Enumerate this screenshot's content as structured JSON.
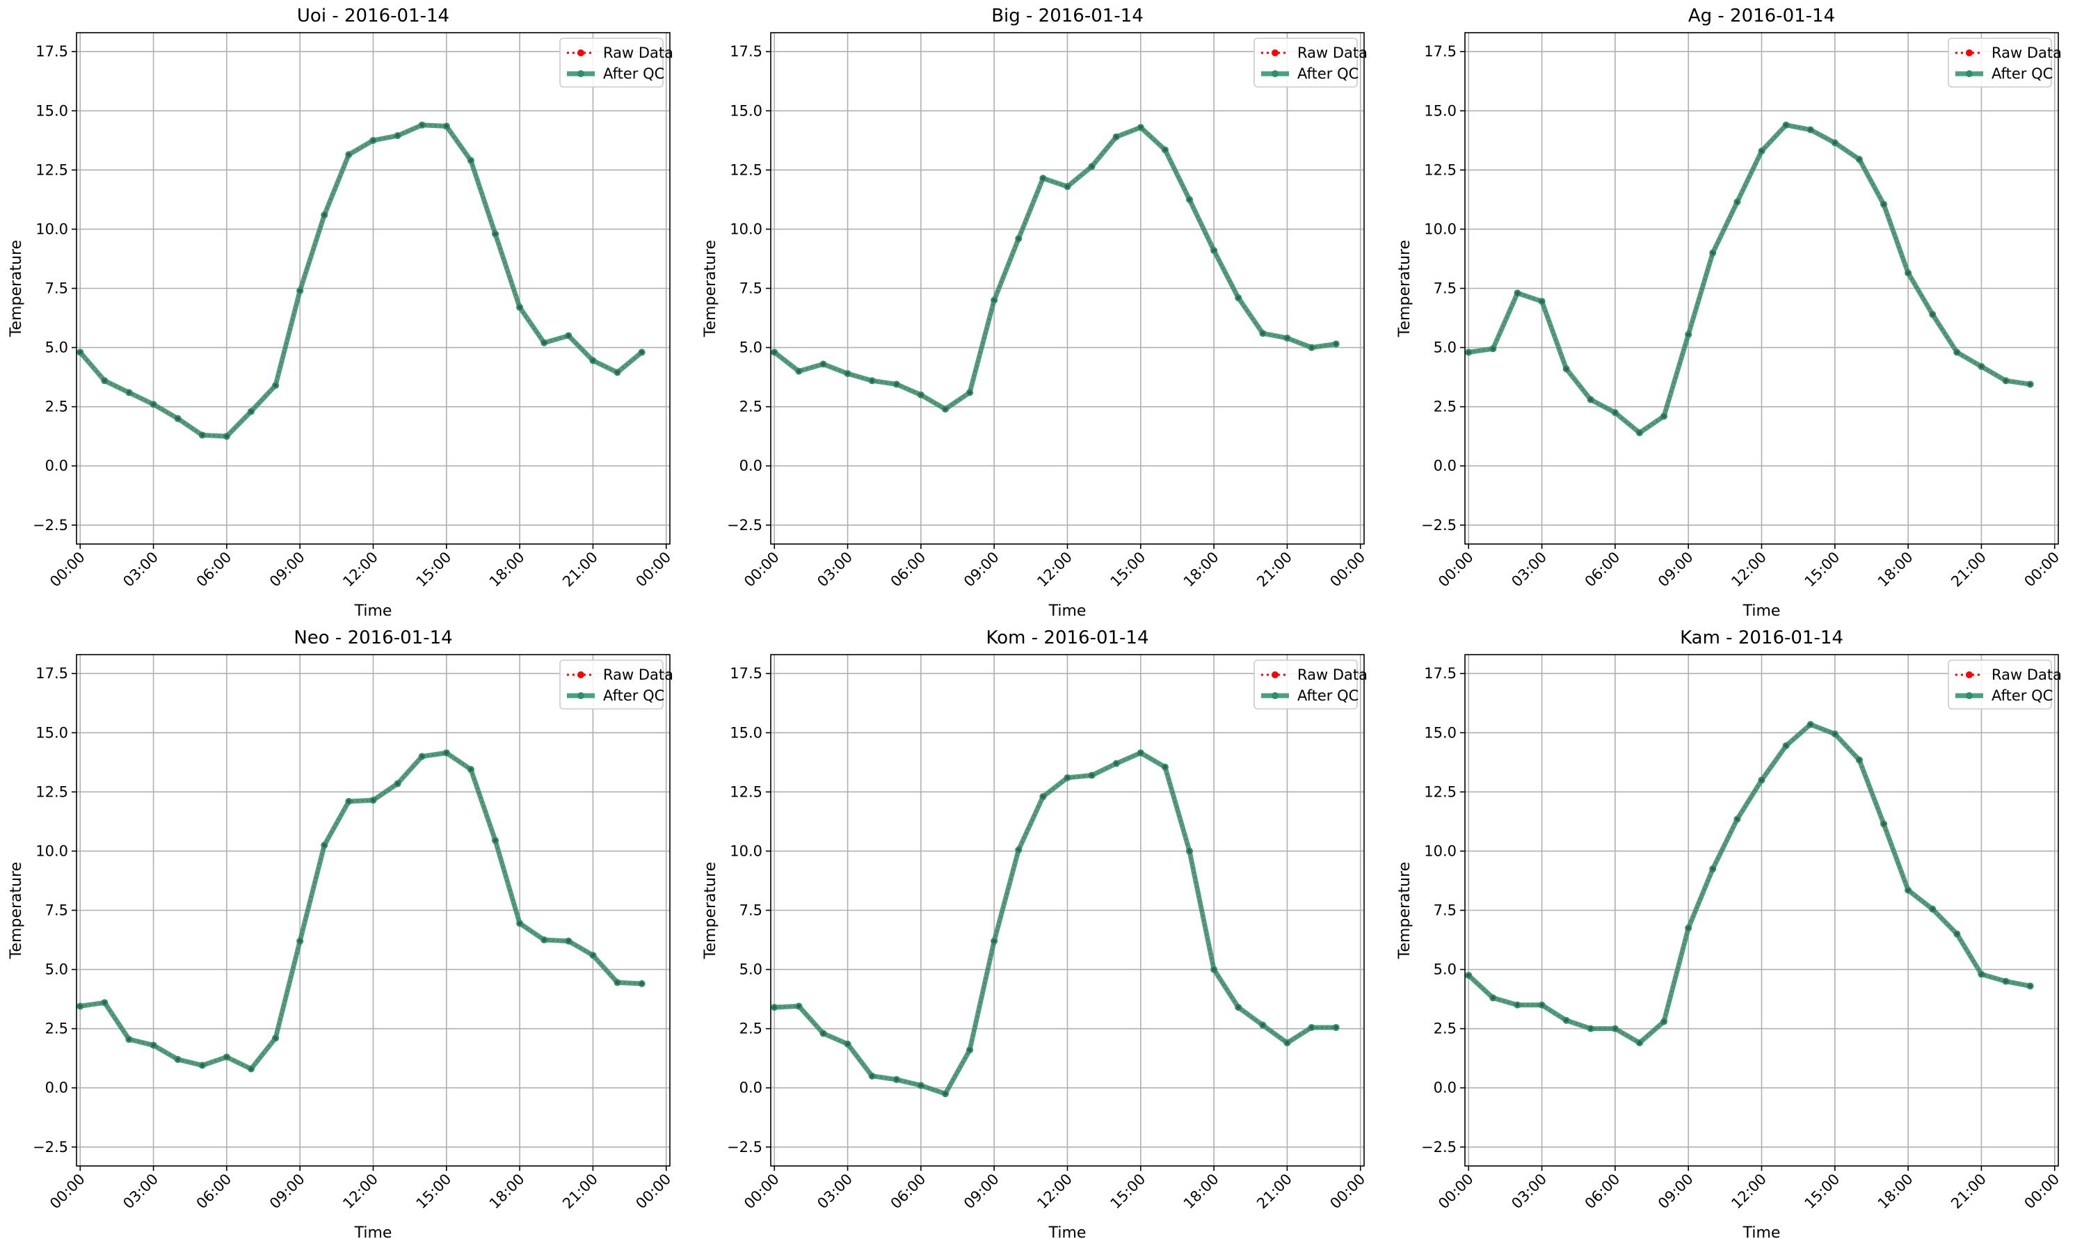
{
  "figure": {
    "background": "#ffffff"
  },
  "style": {
    "raw_color": "#ff0000",
    "qc_color": "#2a8f6a",
    "grid_color": "#b0b0b0",
    "axis_color": "#000000"
  },
  "chart_data": [
    {
      "type": "line",
      "title": "Uoi - 2016-01-14",
      "xlabel": "Time",
      "ylabel": "Temperature",
      "ylim": [
        -3.3,
        18.3
      ],
      "yticks": [
        -2.5,
        0.0,
        2.5,
        5.0,
        7.5,
        10.0,
        12.5,
        15.0,
        17.5
      ],
      "ytick_labels": [
        "−2.5",
        "0.0",
        "2.5",
        "5.0",
        "7.5",
        "10.0",
        "12.5",
        "15.0",
        "17.5"
      ],
      "xlim": [
        -0.15,
        24.15
      ],
      "xticks": [
        0,
        3,
        6,
        9,
        12,
        15,
        18,
        21,
        24
      ],
      "xtick_labels": [
        "00:00",
        "03:00",
        "06:00",
        "09:00",
        "12:00",
        "15:00",
        "18:00",
        "21:00",
        "00:00"
      ],
      "grid": true,
      "legend_position": "top-right",
      "x": [
        0,
        1,
        2,
        3,
        4,
        5,
        6,
        7,
        8,
        9,
        10,
        11,
        12,
        13,
        14,
        15,
        16,
        17,
        18,
        19,
        20,
        21,
        22,
        23
      ],
      "series": [
        {
          "name": "Raw Data",
          "values": [
            4.8,
            3.6,
            3.1,
            2.6,
            2.0,
            1.3,
            1.25,
            2.3,
            3.4,
            7.4,
            10.6,
            13.15,
            13.75,
            13.95,
            14.4,
            14.35,
            12.9,
            9.8,
            6.7,
            5.2,
            5.5,
            4.45,
            3.95,
            4.8
          ]
        },
        {
          "name": "After QC",
          "values": [
            4.8,
            3.6,
            3.1,
            2.6,
            2.0,
            1.3,
            1.25,
            2.3,
            3.4,
            7.4,
            10.6,
            13.15,
            13.75,
            13.95,
            14.4,
            14.35,
            12.9,
            9.8,
            6.7,
            5.2,
            5.5,
            4.45,
            3.95,
            4.8
          ]
        }
      ]
    },
    {
      "type": "line",
      "title": "Big - 2016-01-14",
      "xlabel": "Time",
      "ylabel": "Temperature",
      "ylim": [
        -3.3,
        18.3
      ],
      "yticks": [
        -2.5,
        0.0,
        2.5,
        5.0,
        7.5,
        10.0,
        12.5,
        15.0,
        17.5
      ],
      "ytick_labels": [
        "−2.5",
        "0.0",
        "2.5",
        "5.0",
        "7.5",
        "10.0",
        "12.5",
        "15.0",
        "17.5"
      ],
      "xlim": [
        -0.15,
        24.15
      ],
      "xticks": [
        0,
        3,
        6,
        9,
        12,
        15,
        18,
        21,
        24
      ],
      "xtick_labels": [
        "00:00",
        "03:00",
        "06:00",
        "09:00",
        "12:00",
        "15:00",
        "18:00",
        "21:00",
        "00:00"
      ],
      "grid": true,
      "legend_position": "top-right",
      "x": [
        0,
        1,
        2,
        3,
        4,
        5,
        6,
        7,
        8,
        9,
        10,
        11,
        12,
        13,
        14,
        15,
        16,
        17,
        18,
        19,
        20,
        21,
        22,
        23
      ],
      "series": [
        {
          "name": "Raw Data",
          "values": [
            4.8,
            4.0,
            4.3,
            3.9,
            3.6,
            3.45,
            3.0,
            2.4,
            3.1,
            7.0,
            9.6,
            12.15,
            11.8,
            12.65,
            13.9,
            14.3,
            13.35,
            11.25,
            9.1,
            7.1,
            5.6,
            5.4,
            5.0,
            5.15
          ]
        },
        {
          "name": "After QC",
          "values": [
            4.8,
            4.0,
            4.3,
            3.9,
            3.6,
            3.45,
            3.0,
            2.4,
            3.1,
            7.0,
            9.6,
            12.15,
            11.8,
            12.65,
            13.9,
            14.3,
            13.35,
            11.25,
            9.1,
            7.1,
            5.6,
            5.4,
            5.0,
            5.15
          ]
        }
      ]
    },
    {
      "type": "line",
      "title": "Ag - 2016-01-14",
      "xlabel": "Time",
      "ylabel": "Temperature",
      "ylim": [
        -3.3,
        18.3
      ],
      "yticks": [
        -2.5,
        0.0,
        2.5,
        5.0,
        7.5,
        10.0,
        12.5,
        15.0,
        17.5
      ],
      "ytick_labels": [
        "−2.5",
        "0.0",
        "2.5",
        "5.0",
        "7.5",
        "10.0",
        "12.5",
        "15.0",
        "17.5"
      ],
      "xlim": [
        -0.15,
        24.15
      ],
      "xticks": [
        0,
        3,
        6,
        9,
        12,
        15,
        18,
        21,
        24
      ],
      "xtick_labels": [
        "00:00",
        "03:00",
        "06:00",
        "09:00",
        "12:00",
        "15:00",
        "18:00",
        "21:00",
        "00:00"
      ],
      "grid": true,
      "legend_position": "top-right",
      "x": [
        0,
        1,
        2,
        3,
        4,
        5,
        6,
        7,
        8,
        9,
        10,
        11,
        12,
        13,
        14,
        15,
        16,
        17,
        18,
        19,
        20,
        21,
        22,
        23
      ],
      "series": [
        {
          "name": "Raw Data",
          "values": [
            4.8,
            4.95,
            7.3,
            6.95,
            4.1,
            2.8,
            2.25,
            1.4,
            2.1,
            5.55,
            9.0,
            11.15,
            13.3,
            14.4,
            14.2,
            13.65,
            12.95,
            11.05,
            8.15,
            6.4,
            4.8,
            4.2,
            3.6,
            3.45
          ]
        },
        {
          "name": "After QC",
          "values": [
            4.8,
            4.95,
            7.3,
            6.95,
            4.1,
            2.8,
            2.25,
            1.4,
            2.1,
            5.55,
            9.0,
            11.15,
            13.3,
            14.4,
            14.2,
            13.65,
            12.95,
            11.05,
            8.15,
            6.4,
            4.8,
            4.2,
            3.6,
            3.45
          ]
        }
      ]
    },
    {
      "type": "line",
      "title": "Neo - 2016-01-14",
      "xlabel": "Time",
      "ylabel": "Temperature",
      "ylim": [
        -3.3,
        18.3
      ],
      "yticks": [
        -2.5,
        0.0,
        2.5,
        5.0,
        7.5,
        10.0,
        12.5,
        15.0,
        17.5
      ],
      "ytick_labels": [
        "−2.5",
        "0.0",
        "2.5",
        "5.0",
        "7.5",
        "10.0",
        "12.5",
        "15.0",
        "17.5"
      ],
      "xlim": [
        -0.15,
        24.15
      ],
      "xticks": [
        0,
        3,
        6,
        9,
        12,
        15,
        18,
        21,
        24
      ],
      "xtick_labels": [
        "00:00",
        "03:00",
        "06:00",
        "09:00",
        "12:00",
        "15:00",
        "18:00",
        "21:00",
        "00:00"
      ],
      "grid": true,
      "legend_position": "top-right",
      "x": [
        0,
        1,
        2,
        3,
        4,
        5,
        6,
        7,
        8,
        9,
        10,
        11,
        12,
        13,
        14,
        15,
        16,
        17,
        18,
        19,
        20,
        21,
        22,
        23
      ],
      "series": [
        {
          "name": "Raw Data",
          "values": [
            3.45,
            3.6,
            2.05,
            1.8,
            1.2,
            0.95,
            1.3,
            0.8,
            2.1,
            6.2,
            10.25,
            12.1,
            12.15,
            12.85,
            14.0,
            14.15,
            13.45,
            10.45,
            6.95,
            6.25,
            6.2,
            5.6,
            4.45,
            4.4
          ]
        },
        {
          "name": "After QC",
          "values": [
            3.45,
            3.6,
            2.05,
            1.8,
            1.2,
            0.95,
            1.3,
            0.8,
            2.1,
            6.2,
            10.25,
            12.1,
            12.15,
            12.85,
            14.0,
            14.15,
            13.45,
            10.45,
            6.95,
            6.25,
            6.2,
            5.6,
            4.45,
            4.4
          ]
        }
      ]
    },
    {
      "type": "line",
      "title": "Kom - 2016-01-14",
      "xlabel": "Time",
      "ylabel": "Temperature",
      "ylim": [
        -3.3,
        18.3
      ],
      "yticks": [
        -2.5,
        0.0,
        2.5,
        5.0,
        7.5,
        10.0,
        12.5,
        15.0,
        17.5
      ],
      "ytick_labels": [
        "−2.5",
        "0.0",
        "2.5",
        "5.0",
        "7.5",
        "10.0",
        "12.5",
        "15.0",
        "17.5"
      ],
      "xlim": [
        -0.15,
        24.15
      ],
      "xticks": [
        0,
        3,
        6,
        9,
        12,
        15,
        18,
        21,
        24
      ],
      "xtick_labels": [
        "00:00",
        "03:00",
        "06:00",
        "09:00",
        "12:00",
        "15:00",
        "18:00",
        "21:00",
        "00:00"
      ],
      "grid": true,
      "legend_position": "top-right",
      "x": [
        0,
        1,
        2,
        3,
        4,
        5,
        6,
        7,
        8,
        9,
        10,
        11,
        12,
        13,
        14,
        15,
        16,
        17,
        18,
        19,
        20,
        21,
        22,
        23
      ],
      "series": [
        {
          "name": "Raw Data",
          "values": [
            3.4,
            3.45,
            2.3,
            1.85,
            0.5,
            0.35,
            0.1,
            -0.25,
            1.6,
            6.2,
            10.05,
            12.3,
            13.1,
            13.2,
            13.7,
            14.15,
            13.55,
            10.0,
            5.0,
            3.4,
            2.65,
            1.9,
            2.55,
            2.55
          ]
        },
        {
          "name": "After QC",
          "values": [
            3.4,
            3.45,
            2.3,
            1.85,
            0.5,
            0.35,
            0.1,
            -0.25,
            1.6,
            6.2,
            10.05,
            12.3,
            13.1,
            13.2,
            13.7,
            14.15,
            13.55,
            10.0,
            5.0,
            3.4,
            2.65,
            1.9,
            2.55,
            2.55
          ]
        }
      ]
    },
    {
      "type": "line",
      "title": "Kam - 2016-01-14",
      "xlabel": "Time",
      "ylabel": "Temperature",
      "ylim": [
        -3.3,
        18.3
      ],
      "yticks": [
        -2.5,
        0.0,
        2.5,
        5.0,
        7.5,
        10.0,
        12.5,
        15.0,
        17.5
      ],
      "ytick_labels": [
        "−2.5",
        "0.0",
        "2.5",
        "5.0",
        "7.5",
        "10.0",
        "12.5",
        "15.0",
        "17.5"
      ],
      "xlim": [
        -0.15,
        24.15
      ],
      "xticks": [
        0,
        3,
        6,
        9,
        12,
        15,
        18,
        21,
        24
      ],
      "xtick_labels": [
        "00:00",
        "03:00",
        "06:00",
        "09:00",
        "12:00",
        "15:00",
        "18:00",
        "21:00",
        "00:00"
      ],
      "grid": true,
      "legend_position": "top-right",
      "x": [
        0,
        1,
        2,
        3,
        4,
        5,
        6,
        7,
        8,
        9,
        10,
        11,
        12,
        13,
        14,
        15,
        16,
        17,
        18,
        19,
        20,
        21,
        22,
        23
      ],
      "series": [
        {
          "name": "Raw Data",
          "values": [
            4.75,
            3.8,
            3.5,
            3.5,
            2.85,
            2.5,
            2.5,
            1.9,
            2.8,
            6.75,
            9.25,
            11.35,
            13.0,
            14.45,
            15.35,
            14.95,
            13.85,
            11.15,
            8.35,
            7.55,
            6.5,
            4.8,
            4.5,
            4.3
          ]
        },
        {
          "name": "After QC",
          "values": [
            4.75,
            3.8,
            3.5,
            3.5,
            2.85,
            2.5,
            2.5,
            1.9,
            2.8,
            6.75,
            9.25,
            11.35,
            13.0,
            14.45,
            15.35,
            14.95,
            13.85,
            11.15,
            8.35,
            7.55,
            6.5,
            4.8,
            4.5,
            4.3
          ]
        }
      ]
    }
  ]
}
